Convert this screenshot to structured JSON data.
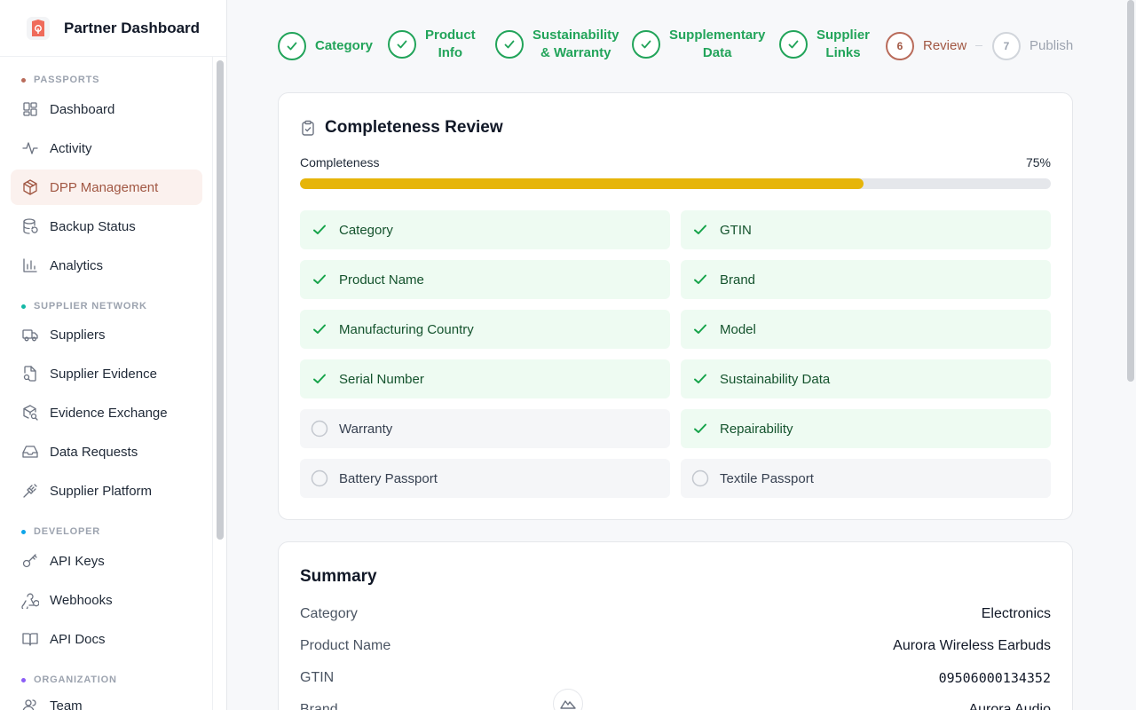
{
  "app": {
    "title": "Partner Dashboard"
  },
  "sidebar": {
    "sections": [
      {
        "label": "PASSPORTS",
        "color": "#b96b5a"
      },
      {
        "label": "SUPPLIER NETWORK",
        "color": "#14b8a6"
      },
      {
        "label": "DEVELOPER",
        "color": "#0ea5e9"
      },
      {
        "label": "ORGANIZATION",
        "color": "#8b5cf6"
      }
    ],
    "items": [
      {
        "label": "Dashboard",
        "icon": "grid-icon"
      },
      {
        "label": "Activity",
        "icon": "activity-icon"
      },
      {
        "label": "DPP Management",
        "icon": "box-icon",
        "active": true
      },
      {
        "label": "Backup Status",
        "icon": "database-icon"
      },
      {
        "label": "Analytics",
        "icon": "bar-chart-icon"
      },
      {
        "label": "Suppliers",
        "icon": "truck-icon"
      },
      {
        "label": "Supplier Evidence",
        "icon": "file-search-icon"
      },
      {
        "label": "Evidence Exchange",
        "icon": "package-search-icon"
      },
      {
        "label": "Data Requests",
        "icon": "inbox-icon"
      },
      {
        "label": "Supplier Platform",
        "icon": "plug-icon"
      },
      {
        "label": "API Keys",
        "icon": "key-icon"
      },
      {
        "label": "Webhooks",
        "icon": "webhook-icon"
      },
      {
        "label": "API Docs",
        "icon": "book-icon"
      },
      {
        "label": "Team",
        "icon": "users-icon"
      }
    ]
  },
  "stepper": {
    "steps": [
      {
        "label": "Category",
        "state": "done"
      },
      {
        "label": "Product\nInfo",
        "state": "done"
      },
      {
        "label": "Sustainability\n& Warranty",
        "state": "done"
      },
      {
        "label": "Supplementary\nData",
        "state": "done"
      },
      {
        "label": "Supplier\nLinks",
        "state": "done"
      },
      {
        "number": "6",
        "label": "Review",
        "state": "current"
      },
      {
        "number": "7",
        "label": "Publish",
        "state": "pending"
      }
    ]
  },
  "completeness": {
    "title": "Completeness Review",
    "label": "Completeness",
    "percent_text": "75%",
    "percent": 75,
    "bar_color": "#e6b50a",
    "checks": [
      {
        "label": "Category",
        "done": true
      },
      {
        "label": "GTIN",
        "done": true
      },
      {
        "label": "Product Name",
        "done": true
      },
      {
        "label": "Brand",
        "done": true
      },
      {
        "label": "Manufacturing Country",
        "done": true
      },
      {
        "label": "Model",
        "done": true
      },
      {
        "label": "Serial Number",
        "done": true
      },
      {
        "label": "Sustainability Data",
        "done": true
      },
      {
        "label": "Warranty",
        "done": false
      },
      {
        "label": "Repairability",
        "done": true
      },
      {
        "label": "Battery Passport",
        "done": false
      },
      {
        "label": "Textile Passport",
        "done": false
      }
    ]
  },
  "summary": {
    "title": "Summary",
    "rows": [
      {
        "key": "Category",
        "value": "Electronics"
      },
      {
        "key": "Product Name",
        "value": "Aurora Wireless Earbuds"
      },
      {
        "key": "GTIN",
        "value": "09506000134352",
        "mono": true
      },
      {
        "key": "Brand",
        "value": "Aurora Audio"
      }
    ]
  }
}
